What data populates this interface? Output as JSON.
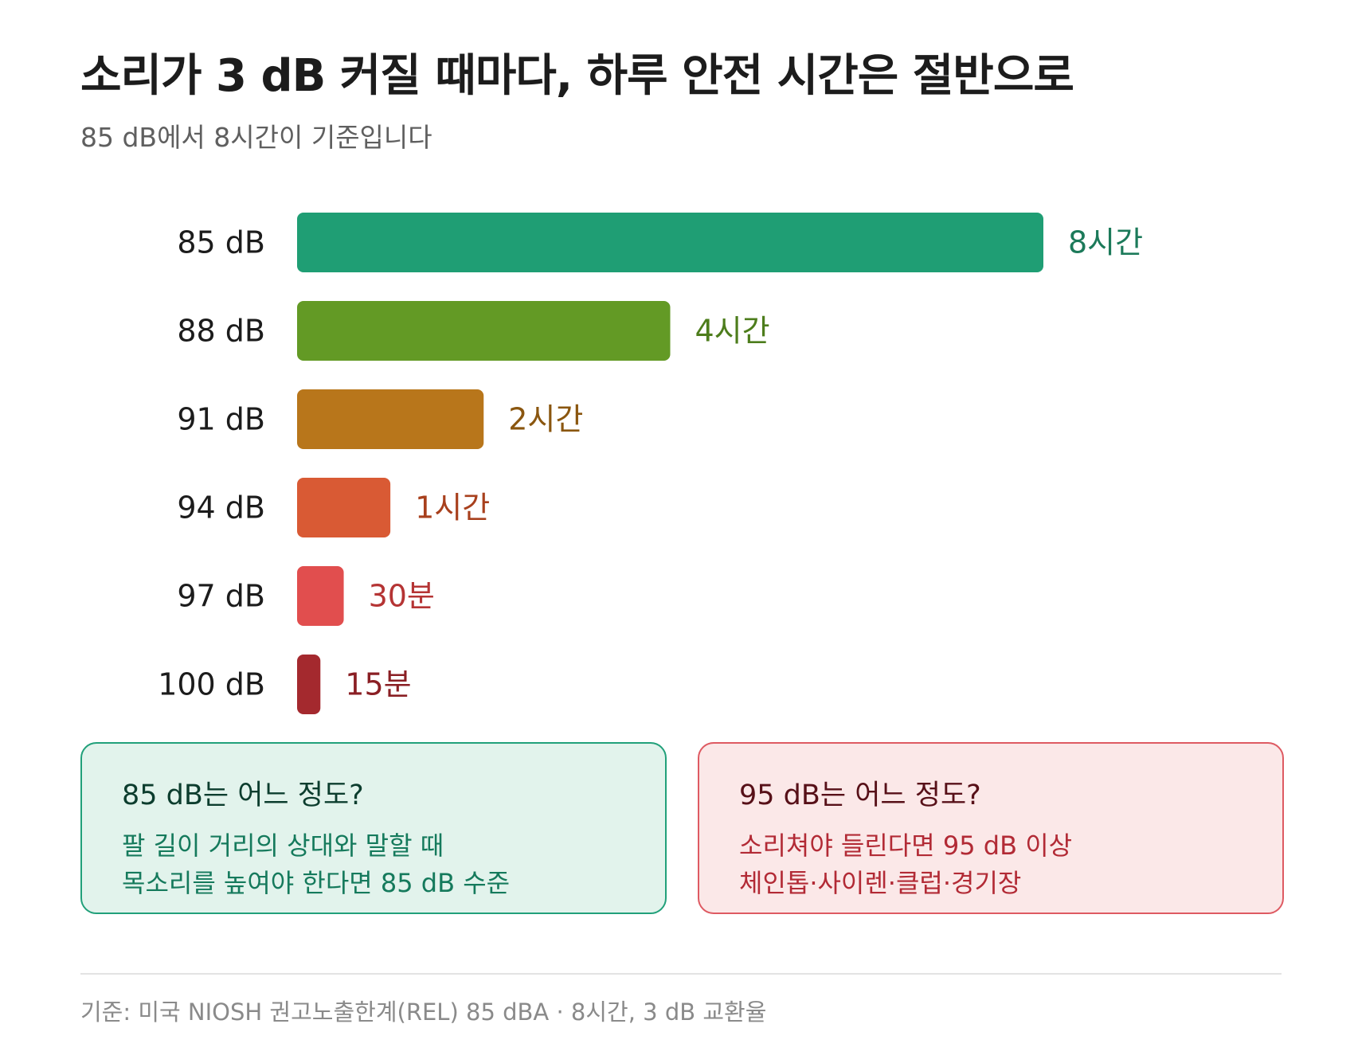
{
  "title": "소리가 3 dB 커질 때마다, 하루 안전 시간은 절반으로",
  "subtitle": "85 dB에서 8시간이 기준입니다",
  "chart_data": {
    "type": "bar",
    "orientation": "horizontal",
    "categories": [
      "85 dB",
      "88 dB",
      "91 dB",
      "94 dB",
      "97 dB",
      "100 dB"
    ],
    "values_minutes": [
      480,
      240,
      120,
      60,
      30,
      15
    ],
    "value_labels": [
      "8시간",
      "4시간",
      "2시간",
      "1시간",
      "30분",
      "15분"
    ],
    "colors": [
      "#1f9e74",
      "#639a25",
      "#b8761b",
      "#d95a34",
      "#e14e4e",
      "#a4292e"
    ],
    "label_colors": [
      "#1c7a5a",
      "#4d7d1c",
      "#8a560f",
      "#a8401d",
      "#b53434",
      "#8a1f24"
    ],
    "xlim": [
      0,
      480
    ],
    "grid": false,
    "legend": "none"
  },
  "cards": {
    "green": {
      "title": "85 dB는 어느 정도?",
      "line1": "팔 길이 거리의 상대와 말할 때",
      "line2": "목소리를 높여야 한다면 85 dB 수준",
      "accent": "#21a07a"
    },
    "red": {
      "title": "95 dB는 어느 정도?",
      "line1": "소리쳐야 들린다면 95 dB 이상",
      "line2": "체인톱·사이렌·클럽·경기장",
      "accent": "#de5a62"
    }
  },
  "footnote": "기준: 미국 NIOSH 권고노출한계(REL) 85 dBA · 8시간, 3 dB 교환율"
}
